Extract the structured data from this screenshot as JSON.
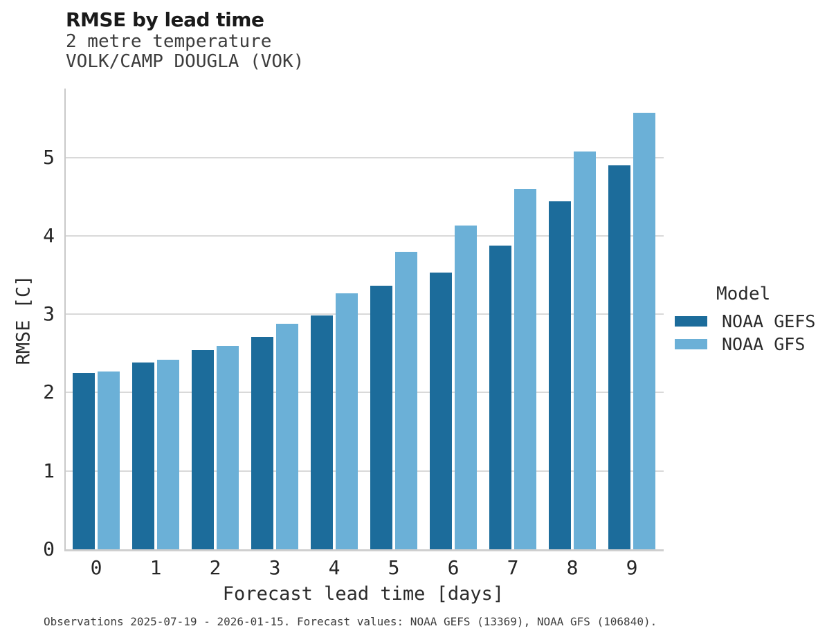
{
  "header": {
    "title": "RMSE by lead time",
    "subtitle_lines": [
      "2 metre temperature",
      "VOLK/CAMP DOUGLA (VOK)"
    ]
  },
  "footer": {
    "caption": "Observations 2025-07-19 - 2026-01-15. Forecast values: NOAA GEFS (13369), NOAA GFS (106840)."
  },
  "colors": {
    "noaa_gefs": "#1c6c9b",
    "noaa_gfs": "#6bb0d7",
    "gridline": "#d9d9d9",
    "axis_line": "#c9c9c9",
    "text": "#262626"
  },
  "chart_data": {
    "type": "bar",
    "title": "RMSE by lead time",
    "subtitle": [
      "2 metre temperature",
      "VOLK/CAMP DOUGLA (VOK)"
    ],
    "xlabel": "Forecast lead time [days]",
    "ylabel": "RMSE [C]",
    "categories": [
      "0",
      "1",
      "2",
      "3",
      "4",
      "5",
      "6",
      "7",
      "8",
      "9"
    ],
    "series": [
      {
        "name": "NOAA GEFS",
        "color": "#1c6c9b",
        "values": [
          2.25,
          2.38,
          2.54,
          2.71,
          2.98,
          3.36,
          3.53,
          3.88,
          4.44,
          4.9
        ]
      },
      {
        "name": "NOAA GFS",
        "color": "#6bb0d7",
        "values": [
          2.27,
          2.42,
          2.6,
          2.88,
          3.27,
          3.8,
          4.13,
          4.6,
          5.08,
          5.57
        ]
      }
    ],
    "ylim": [
      0,
      5.88
    ],
    "yticks": [
      0,
      1,
      2,
      3,
      4,
      5
    ],
    "grid": "horizontal",
    "legend_title": "Model",
    "legend_position": "right",
    "caption": "Observations 2025-07-19 - 2026-01-15. Forecast values: NOAA GEFS (13369), NOAA GFS (106840)."
  }
}
